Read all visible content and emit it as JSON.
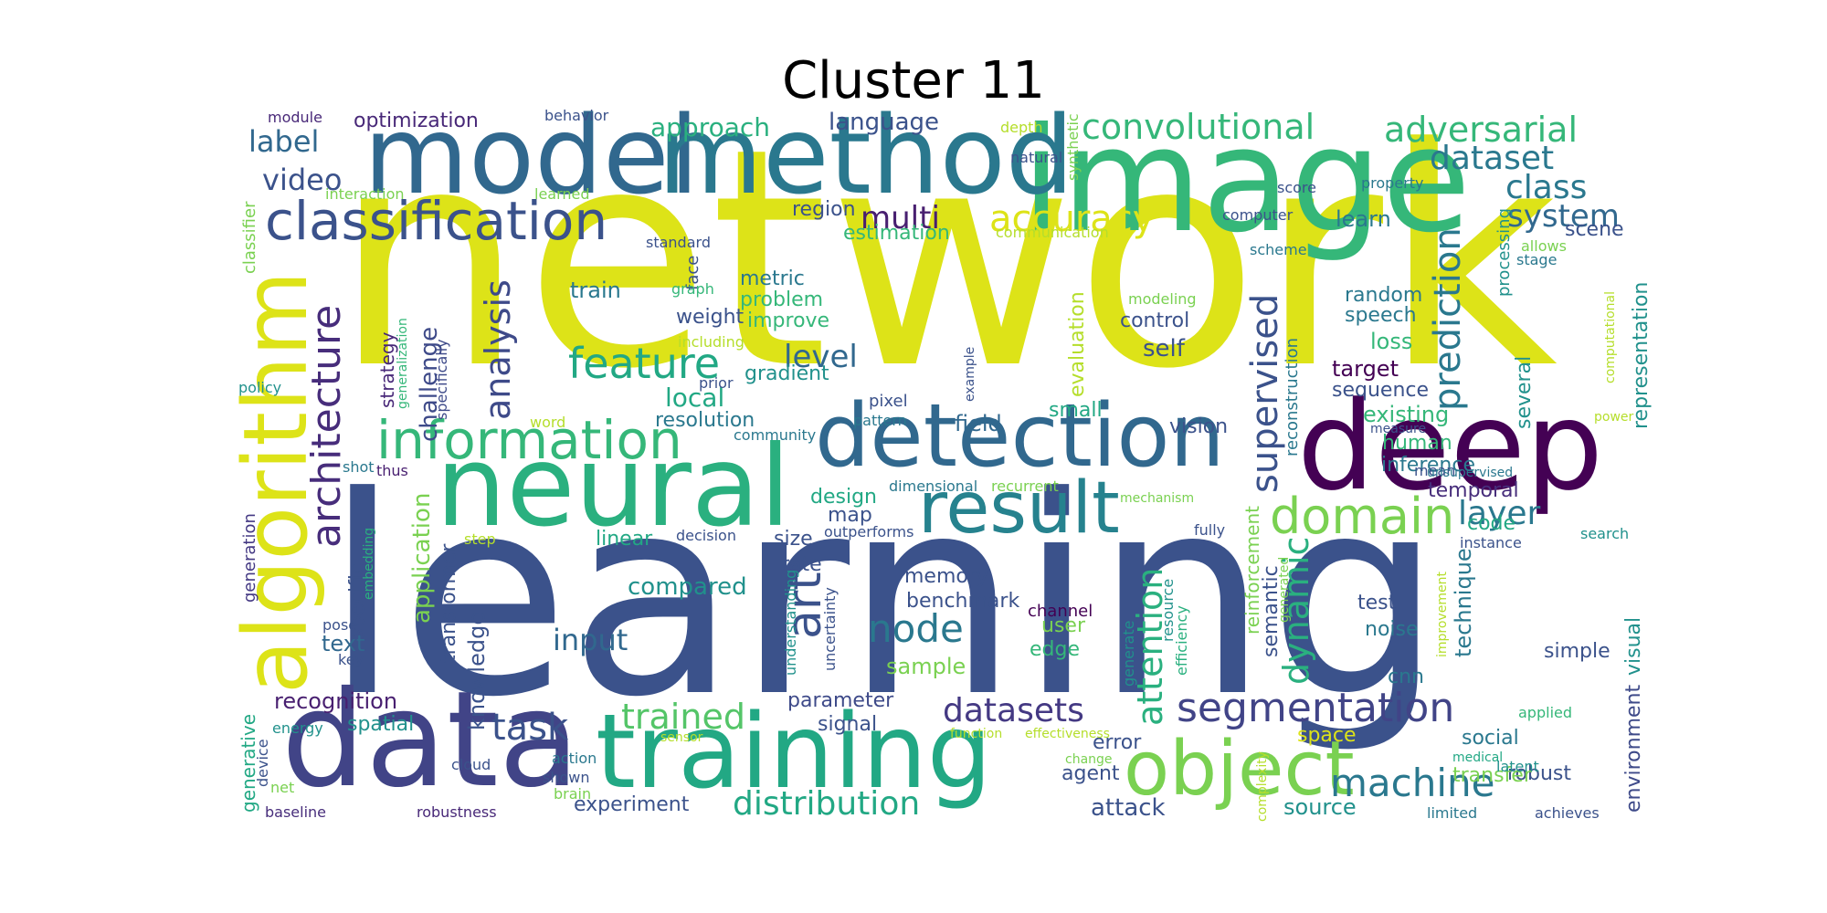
{
  "chart_data": {
    "type": "wordcloud",
    "title": "Cluster 11",
    "colormap": "viridis",
    "background": "#ffffff",
    "words": [
      {
        "text": "network",
        "color": "#dde318"
      },
      {
        "text": "learning",
        "color": "#3b528b"
      },
      {
        "text": "image",
        "color": "#35b779"
      },
      {
        "text": "model",
        "color": "#31688e"
      },
      {
        "text": "method",
        "color": "#2a788e"
      },
      {
        "text": "deep",
        "color": "#440154"
      },
      {
        "text": "data",
        "color": "#414487"
      },
      {
        "text": "training",
        "color": "#22a884"
      },
      {
        "text": "neural",
        "color": "#2ab07f"
      },
      {
        "text": "detection",
        "color": "#31688e"
      },
      {
        "text": "algorithm",
        "color": "#dde318"
      },
      {
        "text": "object",
        "color": "#7ad151"
      },
      {
        "text": "result",
        "color": "#26828e"
      },
      {
        "text": "classification",
        "color": "#3b528b"
      },
      {
        "text": "information",
        "color": "#35b779"
      },
      {
        "text": "domain",
        "color": "#7ad151"
      },
      {
        "text": "segmentation",
        "color": "#414487"
      },
      {
        "text": "architecture",
        "color": "#472d7b"
      },
      {
        "text": "feature",
        "color": "#22a884"
      },
      {
        "text": "machine",
        "color": "#2a788e"
      },
      {
        "text": "convolutional",
        "color": "#35b779"
      },
      {
        "text": "adversarial",
        "color": "#35b779"
      },
      {
        "text": "dataset",
        "color": "#2a788e"
      },
      {
        "text": "supervised",
        "color": "#3b528b"
      },
      {
        "text": "prediction",
        "color": "#2a788e"
      },
      {
        "text": "accuracy",
        "color": "#dde318"
      },
      {
        "text": "art",
        "color": "#3b528b"
      },
      {
        "text": "task",
        "color": "#3b528b"
      },
      {
        "text": "trained",
        "color": "#54c568"
      },
      {
        "text": "datasets",
        "color": "#443983"
      },
      {
        "text": "distribution",
        "color": "#22a884"
      },
      {
        "text": "analysis",
        "color": "#3e4a89"
      },
      {
        "text": "attention",
        "color": "#2ab07f"
      },
      {
        "text": "dynamic",
        "color": "#2ab07f"
      },
      {
        "text": "layer",
        "color": "#2a788e"
      },
      {
        "text": "class",
        "color": "#2a788e"
      },
      {
        "text": "system",
        "color": "#31688e"
      },
      {
        "text": "node",
        "color": "#2a788e"
      },
      {
        "text": "input",
        "color": "#31688e"
      },
      {
        "text": "multi",
        "color": "#481f70"
      },
      {
        "text": "video",
        "color": "#3b528b"
      },
      {
        "text": "level",
        "color": "#31688e"
      },
      {
        "text": "label",
        "color": "#31688e"
      },
      {
        "text": "approach",
        "color": "#2ab07f"
      },
      {
        "text": "language",
        "color": "#3b528b"
      },
      {
        "text": "optimization",
        "color": "#482878"
      },
      {
        "text": "challenge",
        "color": "#3e4a89"
      },
      {
        "text": "application",
        "color": "#7ad151"
      },
      {
        "text": "knowledge",
        "color": "#3b528b"
      },
      {
        "text": "recognition",
        "color": "#481f70"
      },
      {
        "text": "experiment",
        "color": "#3b528b"
      },
      {
        "text": "parameter",
        "color": "#3e4a89"
      },
      {
        "text": "memory",
        "color": "#3b528b"
      },
      {
        "text": "benchmark",
        "color": "#3b528b"
      },
      {
        "text": "compared",
        "color": "#21918c"
      },
      {
        "text": "local",
        "color": "#22a884"
      },
      {
        "text": "resolution",
        "color": "#2a788e"
      },
      {
        "text": "feature",
        "color": "#22a884"
      },
      {
        "text": "field",
        "color": "#31688e"
      },
      {
        "text": "vision",
        "color": "#3b528b"
      },
      {
        "text": "small",
        "color": "#22a884"
      },
      {
        "text": "existing",
        "color": "#35b779"
      },
      {
        "text": "human",
        "color": "#35b779"
      },
      {
        "text": "inference",
        "color": "#2a788e"
      },
      {
        "text": "temporal",
        "color": "#472d7b"
      },
      {
        "text": "code",
        "color": "#22a884"
      },
      {
        "text": "semantic",
        "color": "#3b528b"
      },
      {
        "text": "test",
        "color": "#3b528b"
      },
      {
        "text": "noise",
        "color": "#2a788e"
      },
      {
        "text": "cnn",
        "color": "#2a788e"
      },
      {
        "text": "technique",
        "color": "#2a788e"
      },
      {
        "text": "simple",
        "color": "#3b528b"
      },
      {
        "text": "visual",
        "color": "#21918c"
      },
      {
        "text": "environment",
        "color": "#3e4a89"
      },
      {
        "text": "robust",
        "color": "#3b528b"
      },
      {
        "text": "transfer",
        "color": "#7ad151"
      },
      {
        "text": "social",
        "color": "#2a788e"
      },
      {
        "text": "space",
        "color": "#dde318"
      },
      {
        "text": "source",
        "color": "#21918c"
      },
      {
        "text": "attack",
        "color": "#3b528b"
      },
      {
        "text": "agent",
        "color": "#3b528b"
      },
      {
        "text": "error",
        "color": "#3b528b"
      },
      {
        "text": "signal",
        "color": "#3b528b"
      },
      {
        "text": "sample",
        "color": "#7ad151"
      },
      {
        "text": "edge",
        "color": "#35b779"
      },
      {
        "text": "user",
        "color": "#7ad151"
      },
      {
        "text": "channel",
        "color": "#440154"
      },
      {
        "text": "rate",
        "color": "#3b528b"
      },
      {
        "text": "size",
        "color": "#3b528b"
      },
      {
        "text": "map",
        "color": "#3b528b"
      },
      {
        "text": "design",
        "color": "#22a884"
      },
      {
        "text": "linear",
        "color": "#22a884"
      },
      {
        "text": "decision",
        "color": "#3b528b"
      },
      {
        "text": "outperforms",
        "color": "#3b528b"
      },
      {
        "text": "text",
        "color": "#31688e"
      },
      {
        "text": "specific",
        "color": "#3b528b"
      },
      {
        "text": "transformer",
        "color": "#3b528b"
      },
      {
        "text": "strategy",
        "color": "#482878"
      },
      {
        "text": "generalization",
        "color": "#35b779"
      },
      {
        "text": "specifically",
        "color": "#3e4a89"
      },
      {
        "text": "spatial",
        "color": "#21918c"
      },
      {
        "text": "energy",
        "color": "#21918c"
      },
      {
        "text": "generative",
        "color": "#22a884"
      },
      {
        "text": "device",
        "color": "#3b528b"
      },
      {
        "text": "net",
        "color": "#7ad151"
      },
      {
        "text": "baseline",
        "color": "#472d7b"
      },
      {
        "text": "robustness",
        "color": "#482878"
      },
      {
        "text": "cloud",
        "color": "#3b528b"
      },
      {
        "text": "shown",
        "color": "#3b528b"
      },
      {
        "text": "action",
        "color": "#2a788e"
      },
      {
        "text": "brain",
        "color": "#7ad151"
      },
      {
        "text": "sensor",
        "color": "#b5de2b"
      },
      {
        "text": "function",
        "color": "#b5de2b"
      },
      {
        "text": "effectiveness",
        "color": "#b5de2b"
      },
      {
        "text": "change",
        "color": "#7ad151"
      },
      {
        "text": "complexity",
        "color": "#b5de2b"
      },
      {
        "text": "medical",
        "color": "#22a884"
      },
      {
        "text": "latent",
        "color": "#21918c"
      },
      {
        "text": "limited",
        "color": "#2a788e"
      },
      {
        "text": "achieves",
        "color": "#3b528b"
      },
      {
        "text": "applied",
        "color": "#35b779"
      },
      {
        "text": "generation",
        "color": "#443983"
      },
      {
        "text": "embedding",
        "color": "#2ab07f"
      },
      {
        "text": "pose",
        "color": "#3b528b"
      },
      {
        "text": "key",
        "color": "#3b528b"
      },
      {
        "text": "step",
        "color": "#b5de2b"
      },
      {
        "text": "shot",
        "color": "#2a788e"
      },
      {
        "text": "thus",
        "color": "#481f70"
      },
      {
        "text": "word",
        "color": "#b5de2b"
      },
      {
        "text": "community",
        "color": "#2a788e"
      },
      {
        "text": "pattern",
        "color": "#2a788e"
      },
      {
        "text": "pixel",
        "color": "#3b528b"
      },
      {
        "text": "dimensional",
        "color": "#2a788e"
      },
      {
        "text": "recurrent",
        "color": "#7ad151"
      },
      {
        "text": "mean",
        "color": "#3b528b"
      },
      {
        "text": "mechanism",
        "color": "#7ad151"
      },
      {
        "text": "unsupervised",
        "color": "#2a788e"
      },
      {
        "text": "measure",
        "color": "#3b528b"
      },
      {
        "text": "fully",
        "color": "#3b528b"
      },
      {
        "text": "instance",
        "color": "#3b528b"
      },
      {
        "text": "search",
        "color": "#21918c"
      },
      {
        "text": "reinforcement",
        "color": "#7ad151"
      },
      {
        "text": "reconstruction",
        "color": "#2a788e"
      },
      {
        "text": "efficiency",
        "color": "#2ab07f"
      },
      {
        "text": "resource",
        "color": "#21918c"
      },
      {
        "text": "generate",
        "color": "#21918c"
      },
      {
        "text": "generated",
        "color": "#7ad151"
      },
      {
        "text": "improvement",
        "color": "#b5de2b"
      },
      {
        "text": "flow",
        "color": "#b5de2b"
      },
      {
        "text": "global",
        "color": "#b5de2b"
      },
      {
        "text": "focus",
        "color": "#b5de2b"
      },
      {
        "text": "term",
        "color": "#3b528b"
      },
      {
        "text": "across",
        "color": "#2a788e"
      },
      {
        "text": "understanding",
        "color": "#21918c"
      },
      {
        "text": "uncertainty",
        "color": "#3b528b"
      },
      {
        "text": "weight",
        "color": "#3b528b"
      },
      {
        "text": "train",
        "color": "#2a788e"
      },
      {
        "text": "metric",
        "color": "#2a788e"
      },
      {
        "text": "problem",
        "color": "#35b779"
      },
      {
        "text": "improve",
        "color": "#35b779"
      },
      {
        "text": "gradient",
        "color": "#21918c"
      },
      {
        "text": "face",
        "color": "#3b528b"
      },
      {
        "text": "graph",
        "color": "#35b779"
      },
      {
        "text": "including",
        "color": "#b5de2b"
      },
      {
        "text": "prior",
        "color": "#3b528b"
      },
      {
        "text": "example",
        "color": "#3b528b"
      },
      {
        "text": "evaluation",
        "color": "#b5de2b"
      },
      {
        "text": "control",
        "color": "#3b528b"
      },
      {
        "text": "self",
        "color": "#3b528b"
      },
      {
        "text": "modeling",
        "color": "#7ad151"
      },
      {
        "text": "random",
        "color": "#2a788e"
      },
      {
        "text": "speech",
        "color": "#2a788e"
      },
      {
        "text": "loss",
        "color": "#35b779"
      },
      {
        "text": "target",
        "color": "#440154"
      },
      {
        "text": "sequence",
        "color": "#3b528b"
      },
      {
        "text": "processing",
        "color": "#21918c"
      },
      {
        "text": "representation",
        "color": "#21918c"
      },
      {
        "text": "computational",
        "color": "#b5de2b"
      },
      {
        "text": "several",
        "color": "#21918c"
      },
      {
        "text": "power",
        "color": "#b5de2b"
      },
      {
        "text": "stage",
        "color": "#2a788e"
      },
      {
        "text": "allows",
        "color": "#7ad151"
      },
      {
        "text": "scene",
        "color": "#3b528b"
      },
      {
        "text": "learn",
        "color": "#2a788e"
      },
      {
        "text": "scheme",
        "color": "#2a788e"
      },
      {
        "text": "computer",
        "color": "#3b528b"
      },
      {
        "text": "communication",
        "color": "#b5de2b"
      },
      {
        "text": "estimation",
        "color": "#35b779"
      },
      {
        "text": "region",
        "color": "#3b528b"
      },
      {
        "text": "standard",
        "color": "#3b528b"
      },
      {
        "text": "score",
        "color": "#3b528b"
      },
      {
        "text": "property",
        "color": "#2a788e"
      },
      {
        "text": "natural",
        "color": "#3b528b"
      },
      {
        "text": "synthetic",
        "color": "#7ad151"
      },
      {
        "text": "depth",
        "color": "#b5de2b"
      },
      {
        "text": "behavior",
        "color": "#3b528b"
      },
      {
        "text": "module",
        "color": "#482878"
      },
      {
        "text": "learned",
        "color": "#7ad151"
      },
      {
        "text": "interaction",
        "color": "#7ad151"
      },
      {
        "text": "classifier",
        "color": "#7ad151"
      },
      {
        "text": "policy",
        "color": "#21918c"
      }
    ]
  }
}
